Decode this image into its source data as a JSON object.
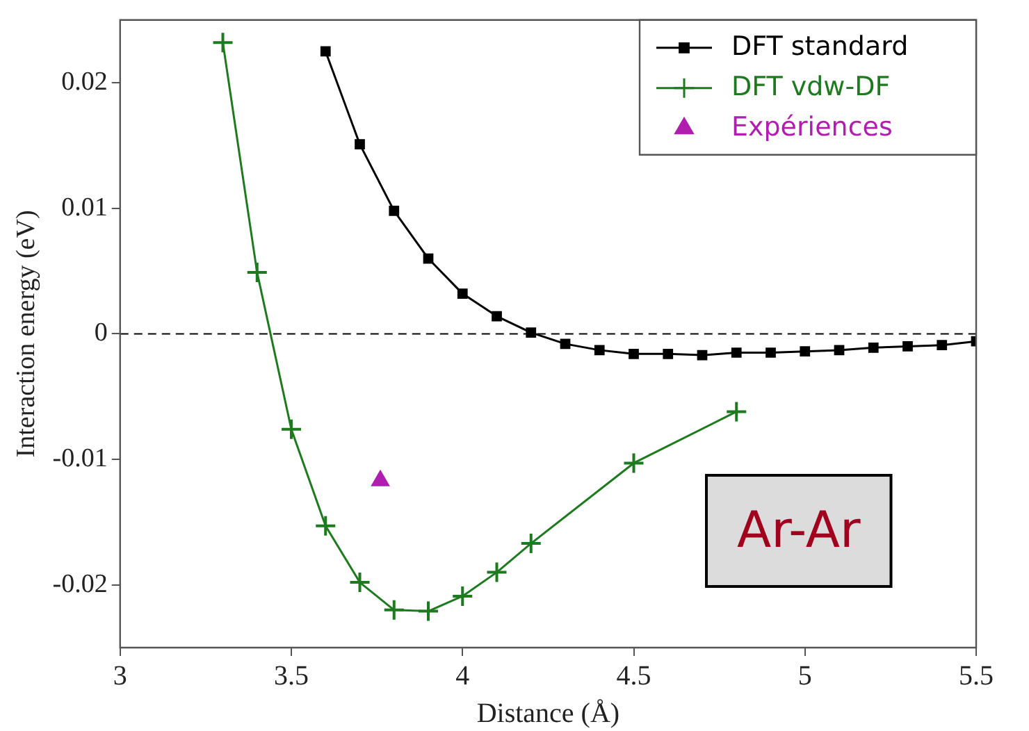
{
  "chart_data": {
    "type": "line",
    "xlabel": "Distance (Å)",
    "ylabel": "Interaction energy (eV)",
    "xlim": [
      3,
      5.5
    ],
    "xticks": [
      3,
      3.5,
      4,
      4.5,
      5,
      5.5
    ],
    "ylim": [
      -0.025,
      0.025
    ],
    "yticks": [
      -0.02,
      -0.01,
      0,
      0.01,
      0.02
    ],
    "series": [
      {
        "name": "DFT standard",
        "color": "#000000",
        "marker": "square",
        "x": [
          3.6,
          3.7,
          3.8,
          3.9,
          4.0,
          4.1,
          4.2,
          4.3,
          4.4,
          4.5,
          4.6,
          4.7,
          4.8,
          4.9,
          5.0,
          5.1,
          5.2,
          5.3,
          5.4,
          5.5
        ],
        "values": [
          0.0225,
          0.0151,
          0.0098,
          0.006,
          0.0032,
          0.0014,
          0.0001,
          -0.0008,
          -0.0013,
          -0.0016,
          -0.0016,
          -0.0017,
          -0.0015,
          -0.0015,
          -0.0014,
          -0.0013,
          -0.0011,
          -0.001,
          -0.0009,
          -0.0006
        ]
      },
      {
        "name": "DFT vdw-DF",
        "color": "#1e7a1e",
        "marker": "cross",
        "x": [
          3.3,
          3.4,
          3.5,
          3.6,
          3.7,
          3.8,
          3.9,
          4.0,
          4.1,
          4.2,
          4.5,
          4.8
        ],
        "values": [
          0.0232,
          0.0049,
          -0.0076,
          -0.0153,
          -0.0198,
          -0.022,
          -0.0221,
          -0.0209,
          -0.019,
          -0.0167,
          -0.0103,
          -0.0062
        ]
      },
      {
        "name": "Expériences",
        "type": "scatter",
        "color": "#b01eb0",
        "marker": "triangle",
        "x": [
          3.76
        ],
        "values": [
          -0.0117
        ]
      }
    ],
    "ref_lines": [
      {
        "axis": "y",
        "value": 0,
        "line_style": "dashed",
        "color": "#000000"
      }
    ],
    "annotations": [
      "Ar-Ar"
    ],
    "legend": "top right",
    "grid": false
  }
}
